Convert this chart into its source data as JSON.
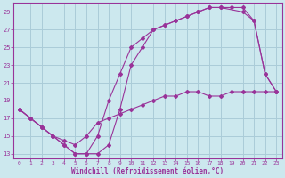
{
  "xlabel": "Windchill (Refroidissement éolien,°C)",
  "xlim": [
    -0.5,
    23.5
  ],
  "ylim": [
    12.5,
    30
  ],
  "xticks": [
    0,
    1,
    2,
    3,
    4,
    5,
    6,
    7,
    8,
    9,
    10,
    11,
    12,
    13,
    14,
    15,
    16,
    17,
    18,
    19,
    20,
    21,
    22,
    23
  ],
  "yticks": [
    13,
    15,
    17,
    19,
    21,
    23,
    25,
    27,
    29
  ],
  "bg_color": "#cce8ee",
  "grid_color": "#aaccd8",
  "line_color": "#993399",
  "line1_x": [
    0,
    1,
    2,
    3,
    4,
    5,
    6,
    7,
    8,
    9,
    10,
    11,
    12,
    13,
    14,
    15,
    16,
    17,
    18,
    20,
    21,
    22,
    23
  ],
  "line1_y": [
    18,
    17,
    16,
    15,
    14,
    13,
    13,
    15,
    19,
    22,
    25,
    26,
    27,
    27.5,
    28,
    28.5,
    29,
    29.5,
    29.5,
    29,
    28,
    22,
    20
  ],
  "line2_x": [
    0,
    1,
    2,
    3,
    4,
    5,
    6,
    7,
    8,
    9,
    10,
    11,
    12,
    13,
    14,
    15,
    16,
    17,
    18,
    19,
    20,
    21,
    22,
    23
  ],
  "line2_y": [
    18,
    17,
    16,
    15,
    14,
    13,
    13,
    13,
    14,
    18,
    23,
    25,
    27,
    27.5,
    28,
    28.5,
    29,
    29.5,
    29.5,
    29.5,
    29.5,
    28,
    22,
    20
  ],
  "line3_x": [
    0,
    1,
    2,
    3,
    4,
    5,
    6,
    7,
    8,
    9,
    10,
    11,
    12,
    13,
    14,
    15,
    16,
    17,
    18,
    19,
    20,
    21,
    22,
    23
  ],
  "line3_y": [
    18,
    17,
    16,
    15,
    14.5,
    14,
    15,
    16.5,
    17,
    17.5,
    18,
    18.5,
    19,
    19.5,
    19.5,
    20,
    20,
    19.5,
    19.5,
    20,
    20,
    20,
    20,
    20
  ]
}
